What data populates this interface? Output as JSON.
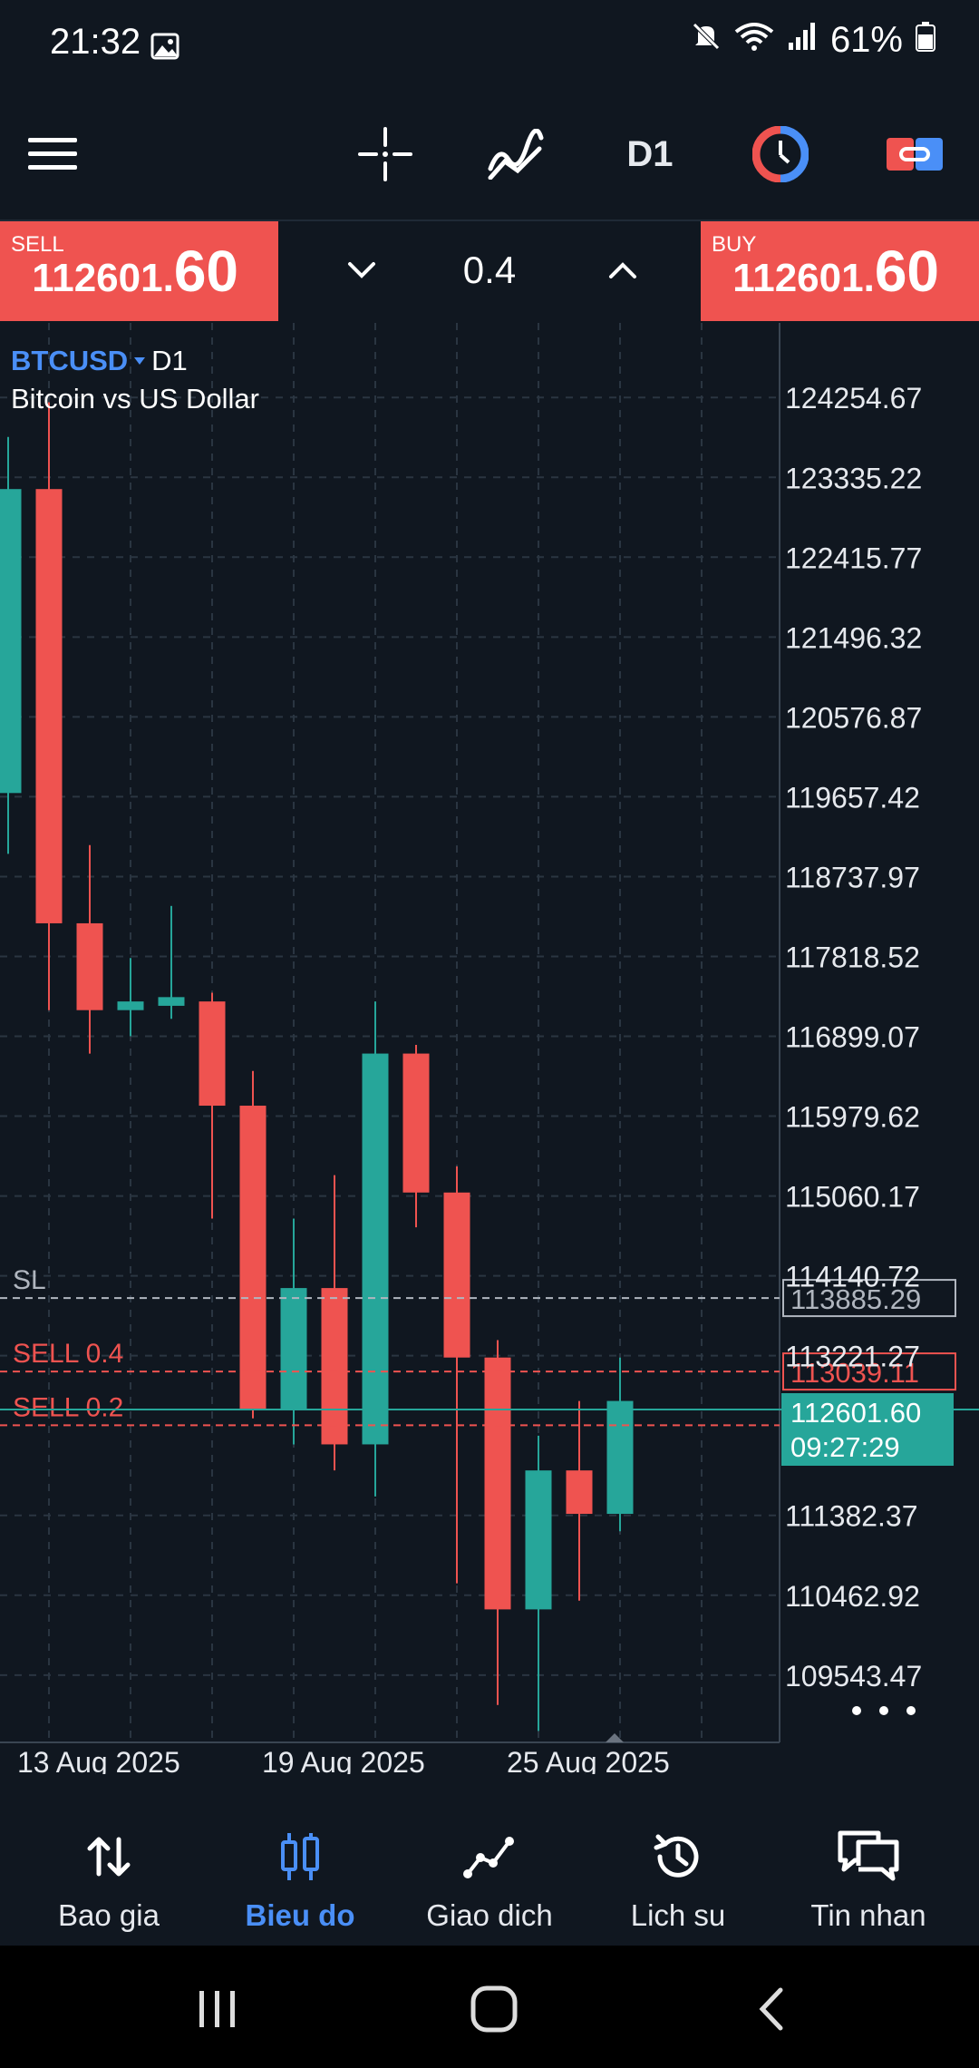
{
  "status": {
    "time": "21:32",
    "battery": "61%"
  },
  "toolbar": {
    "menu_icon": "hamburger-icon",
    "crosshair_icon": "crosshair-icon",
    "indicators_icon": "indicators-icon",
    "timeframe": "D1",
    "objects_icon": "clock-objects-icon",
    "trade_icon": "one-click-trade-icon"
  },
  "trade": {
    "sell_label": "SELL",
    "sell_price_main": "112601.",
    "sell_price_big": "60",
    "buy_label": "BUY",
    "buy_price_main": "112601.",
    "buy_price_big": "60",
    "lot": "0.4"
  },
  "symbol": {
    "name": "BTCUSD",
    "timeframe": "D1",
    "description": "Bitcoin vs US Dollar"
  },
  "colors": {
    "bull": "#26a69a",
    "bear": "#ef5350",
    "accent": "#4a8ff7",
    "background": "#101720"
  },
  "chart_data": {
    "type": "candlestick",
    "y_ticks": [
      "124254.67",
      "123335.22",
      "122415.77",
      "121496.32",
      "120576.87",
      "119657.42",
      "118737.97",
      "117818.52",
      "116899.07",
      "115979.62",
      "115060.17",
      "114140.72",
      "113221.27",
      "111382.37",
      "110462.92",
      "109543.47"
    ],
    "ylim": [
      108800,
      124800
    ],
    "x_ticks": [
      {
        "index": 2,
        "label": "13 Aug 2025"
      },
      {
        "index": 8,
        "label": "19 Aug 2025"
      },
      {
        "index": 14,
        "label": "25 Aug 2025"
      }
    ],
    "candles": [
      {
        "o": 119700,
        "h": 123800,
        "l": 119000,
        "c": 123200
      },
      {
        "o": 123200,
        "h": 124200,
        "l": 117200,
        "c": 118200
      },
      {
        "o": 118200,
        "h": 119100,
        "l": 116700,
        "c": 117200
      },
      {
        "o": 117200,
        "h": 117800,
        "l": 116900,
        "c": 117300
      },
      {
        "o": 117250,
        "h": 118400,
        "l": 117100,
        "c": 117350
      },
      {
        "o": 117300,
        "h": 117400,
        "l": 114800,
        "c": 116100
      },
      {
        "o": 116100,
        "h": 116500,
        "l": 112500,
        "c": 112600
      },
      {
        "o": 112600,
        "h": 114800,
        "l": 112200,
        "c": 114000
      },
      {
        "o": 114000,
        "h": 115300,
        "l": 111900,
        "c": 112200
      },
      {
        "o": 112200,
        "h": 117300,
        "l": 111600,
        "c": 116700
      },
      {
        "o": 116700,
        "h": 116800,
        "l": 114700,
        "c": 115100
      },
      {
        "o": 115100,
        "h": 115400,
        "l": 110600,
        "c": 113200
      },
      {
        "o": 113200,
        "h": 113400,
        "l": 109200,
        "c": 110300
      },
      {
        "o": 110300,
        "h": 112300,
        "l": 108900,
        "c": 111900
      },
      {
        "o": 111900,
        "h": 112700,
        "l": 110400,
        "c": 111400
      },
      {
        "o": 111400,
        "h": 113200,
        "l": 111200,
        "c": 112700
      }
    ],
    "levels": [
      {
        "label": "SL",
        "price": 113885.29,
        "price_label": "113885.29",
        "kind": "sl"
      },
      {
        "label": "SELL 0.4",
        "price": 113039.11,
        "price_label": "113039.11",
        "kind": "order"
      },
      {
        "label": "SELL 0.2",
        "price": 112420,
        "price_label": "",
        "kind": "order"
      }
    ],
    "current_price": {
      "price": 112601.6,
      "price_label": "112601.60",
      "countdown": "09:27:29"
    }
  },
  "nav": {
    "quotes": "Bao gia",
    "chart": "Bieu do",
    "trade": "Giao dich",
    "history": "Lich su",
    "messages": "Tin nhan"
  }
}
